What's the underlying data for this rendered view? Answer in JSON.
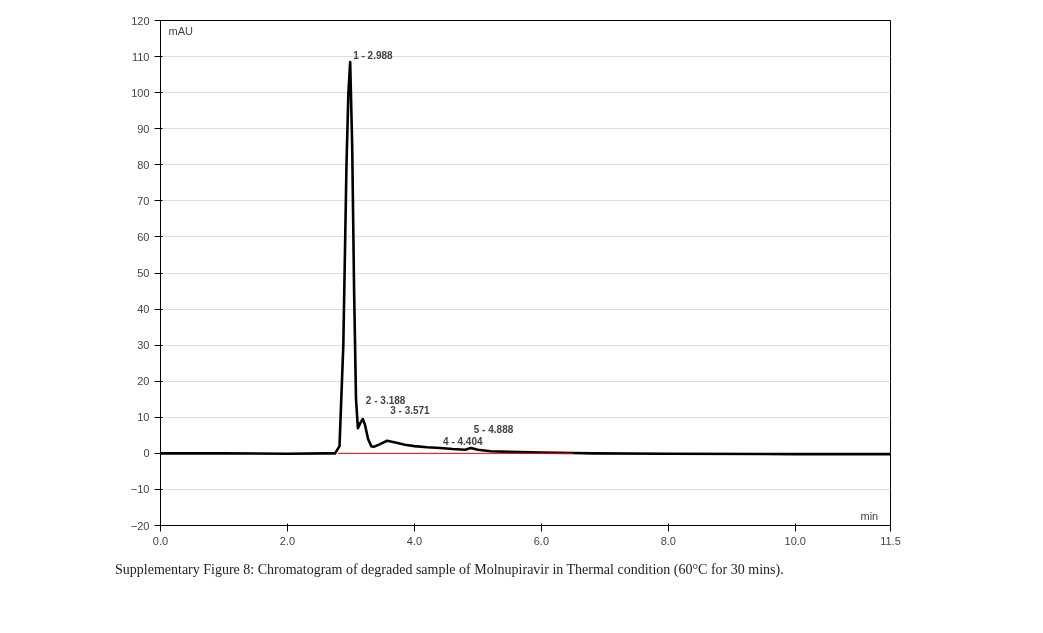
{
  "chart_data": {
    "type": "line",
    "xlabel": "min",
    "ylabel": "mAU",
    "x": [
      0,
      1.0,
      2.0,
      2.6,
      2.75,
      2.82,
      2.88,
      2.93,
      2.96,
      2.988,
      3.02,
      3.05,
      3.08,
      3.11,
      3.15,
      3.188,
      3.22,
      3.27,
      3.32,
      3.36,
      3.45,
      3.571,
      3.7,
      3.85,
      4.0,
      4.2,
      4.404,
      4.6,
      4.8,
      4.888,
      5.0,
      5.2,
      5.5,
      6.0,
      6.5,
      6.8,
      8.0,
      10.0,
      11.5
    ],
    "series": [
      {
        "color": "#000000",
        "values": [
          0,
          0,
          -0.1,
          0,
          0,
          2,
          30,
          80,
          100,
          108.5,
          85,
          45,
          15,
          7,
          8.5,
          9.5,
          8,
          4,
          2,
          1.8,
          2.5,
          3.5,
          3.0,
          2.4,
          2.0,
          1.7,
          1.5,
          1.2,
          1.0,
          1.5,
          1.0,
          0.6,
          0.4,
          0.2,
          0.1,
          0,
          -0.1,
          -0.2,
          -0.2
        ]
      },
      {
        "color": "#ff0000",
        "x": [
          2.8,
          6.5
        ],
        "values": [
          0,
          0
        ]
      }
    ],
    "xlim": [
      0,
      11.5
    ],
    "ylim": [
      -20,
      120
    ],
    "xticks": [
      {
        "value": 0,
        "label": "0.0"
      },
      {
        "value": 2,
        "label": "2.0"
      },
      {
        "value": 4,
        "label": "4.0"
      },
      {
        "value": 6,
        "label": "6.0"
      },
      {
        "value": 8,
        "label": "8.0"
      },
      {
        "value": 10,
        "label": "10.0"
      },
      {
        "value": 11.5,
        "label": "11.5"
      }
    ],
    "yticks": [
      -20,
      -10,
      0,
      10,
      20,
      30,
      40,
      50,
      60,
      70,
      80,
      90,
      100,
      110,
      120
    ],
    "grid": "y",
    "annotations": [
      {
        "text": "1 - 2.988",
        "x": 2.988,
        "y": 108.5
      },
      {
        "text": "2 - 3.188",
        "x": 3.188,
        "y": 9.5
      },
      {
        "text": "3 - 3.571",
        "x": 3.571,
        "y": 3.5
      },
      {
        "text": "4 - 4.404",
        "x": 4.404,
        "y": 1.5
      },
      {
        "text": "5 - 4.888",
        "x": 4.888,
        "y": 1.5
      },
      "Supplementary Figure 8: Chromatogram of degraded sample of Molnupiravir in Thermal condition (60°C for 30 mins)."
    ]
  }
}
